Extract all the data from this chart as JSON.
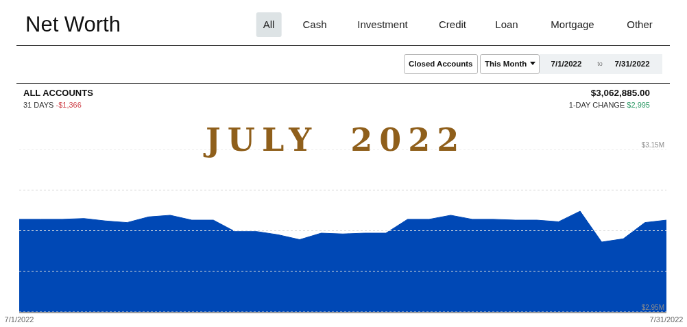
{
  "chart_data": {
    "type": "area",
    "title": "Net Worth",
    "subtitle": "ALL ACCOUNTS",
    "annotations": [
      "All",
      "Cash",
      "Investment",
      "Credit",
      "Loan",
      "Mortgage",
      "Other",
      "Closed Accounts",
      "This Month",
      "7/1/2022",
      "to",
      "7/31/2022",
      "31 DAYS",
      "-$1,366",
      "$3,062,885.00",
      "1-DAY CHANGE",
      "$2,995",
      "JULY 2022"
    ],
    "x": [
      "2022-07-01",
      "2022-07-02",
      "2022-07-03",
      "2022-07-04",
      "2022-07-05",
      "2022-07-06",
      "2022-07-07",
      "2022-07-08",
      "2022-07-09",
      "2022-07-10",
      "2022-07-11",
      "2022-07-12",
      "2022-07-13",
      "2022-07-14",
      "2022-07-15",
      "2022-07-16",
      "2022-07-17",
      "2022-07-18",
      "2022-07-19",
      "2022-07-20",
      "2022-07-21",
      "2022-07-22",
      "2022-07-23",
      "2022-07-24",
      "2022-07-25",
      "2022-07-26",
      "2022-07-27",
      "2022-07-28",
      "2022-07-29",
      "2022-07-30",
      "2022-07-31"
    ],
    "values": [
      3.064,
      3.064,
      3.064,
      3.065,
      3.062,
      3.06,
      3.067,
      3.069,
      3.063,
      3.063,
      3.049,
      3.049,
      3.045,
      3.039,
      3.047,
      3.046,
      3.047,
      3.047,
      3.064,
      3.064,
      3.069,
      3.064,
      3.064,
      3.063,
      3.063,
      3.061,
      3.074,
      3.036,
      3.04,
      3.06,
      3.063
    ],
    "color": "#0048b5",
    "xlim": [
      "2022-07-01",
      "2022-07-31"
    ],
    "xticks": [
      {
        "value": "2022-07-01",
        "label": "7/1/2022"
      },
      {
        "value": "2022-07-31",
        "label": "7/31/2022"
      }
    ],
    "ylim": [
      2.95,
      3.15
    ],
    "yticks": [
      {
        "value": 2.95,
        "label": "$2.95M"
      },
      {
        "value": 3.0,
        "label": null
      },
      {
        "value": 3.05,
        "label": null
      },
      {
        "value": 3.1,
        "label": null
      },
      {
        "value": 3.15,
        "label": "$3.15M"
      }
    ],
    "grid": "y"
  }
}
